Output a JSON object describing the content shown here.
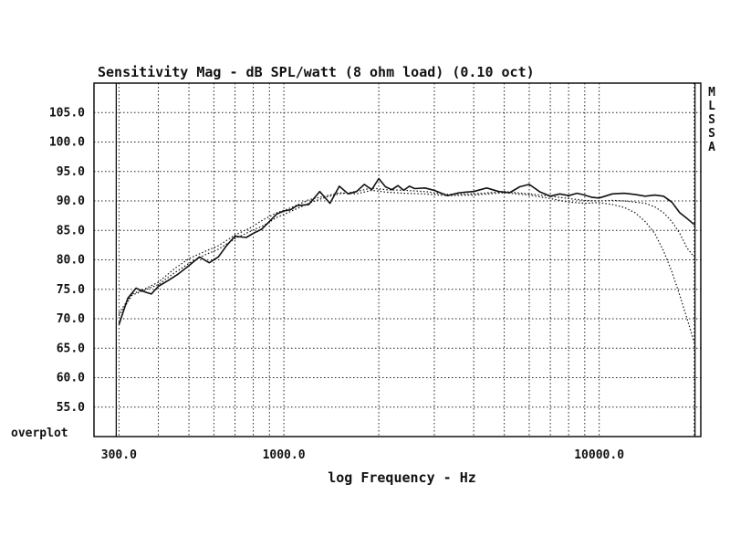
{
  "chart_data": {
    "type": "line",
    "title": "Sensitivity Mag - dB SPL/watt (8 ohm load) (0.10 oct)",
    "xlabel": "log Frequency - Hz",
    "ylabel": "",
    "corner_label": "overplot",
    "side_label": "MLSSA",
    "x_scale": "log",
    "xlim": [
      250,
      21000
    ],
    "ylim": [
      50,
      110
    ],
    "grid": true,
    "x_ticks": [
      300,
      1000,
      10000
    ],
    "x_tick_labels": [
      "300.0",
      "1000.0",
      "10000.0"
    ],
    "y_ticks": [
      55,
      60,
      65,
      70,
      75,
      80,
      85,
      90,
      95,
      100,
      105
    ],
    "y_tick_labels": [
      "55.0",
      "60.0",
      "65.0",
      "70.0",
      "75.0",
      "80.0",
      "85.0",
      "90.0",
      "95.0",
      "100.0",
      "105.0"
    ],
    "series": [
      {
        "style": "solid",
        "x": [
          300,
          320,
          340,
          360,
          380,
          400,
          430,
          460,
          500,
          540,
          580,
          620,
          660,
          700,
          760,
          800,
          850,
          900,
          950,
          1000,
          1050,
          1100,
          1200,
          1300,
          1400,
          1500,
          1600,
          1700,
          1800,
          1900,
          2000,
          2100,
          2200,
          2300,
          2400,
          2500,
          2600,
          2800,
          3000,
          3300,
          3600,
          4000,
          4400,
          4800,
          5200,
          5600,
          6000,
          6500,
          7000,
          7500,
          8000,
          8500,
          9000,
          9500,
          10000,
          11000,
          12000,
          13000,
          14000,
          15000,
          16000,
          17000,
          18000,
          19000,
          20000
        ],
        "y": [
          69,
          73.5,
          75.2,
          74.6,
          74.2,
          75.5,
          76.5,
          77.5,
          79,
          80.5,
          79.5,
          80.5,
          82.5,
          84,
          83.8,
          84.5,
          85.2,
          86.5,
          87.8,
          88.3,
          88.5,
          89.2,
          89.4,
          91.6,
          89.6,
          92.5,
          91.2,
          91.6,
          92.8,
          91.9,
          93.8,
          92.4,
          91.9,
          92.6,
          91.8,
          92.5,
          92.1,
          92.2,
          91.8,
          90.9,
          91.4,
          91.6,
          92.2,
          91.6,
          91.4,
          92.4,
          92.8,
          91.5,
          90.8,
          91.2,
          90.9,
          91.3,
          91,
          90.6,
          90.5,
          91.2,
          91.3,
          91.1,
          90.8,
          91,
          90.8,
          89.8,
          88,
          87,
          86
        ]
      },
      {
        "style": "dotted",
        "x": [
          300,
          330,
          360,
          400,
          450,
          500,
          560,
          620,
          700,
          780,
          860,
          950,
          1050,
          1200,
          1350,
          1500,
          1700,
          1900,
          2100,
          2400,
          2800,
          3300,
          4000,
          5000,
          6000,
          7000,
          8000,
          9000,
          10000,
          11000,
          12000,
          13000,
          14000,
          15000,
          16000,
          17000,
          18000,
          19000,
          20000
        ],
        "y": [
          70.5,
          74,
          74.8,
          75.8,
          77.8,
          79.4,
          80.8,
          81.8,
          83.6,
          84.8,
          85.8,
          87.2,
          88.2,
          89.6,
          90.6,
          91.2,
          91.6,
          92.2,
          91.9,
          91.8,
          91.6,
          91.1,
          91.2,
          91.6,
          91.2,
          90.8,
          90.4,
          90.1,
          90,
          90.1,
          90,
          89.8,
          89.6,
          89,
          88,
          86.5,
          84.5,
          82,
          80.5
        ]
      },
      {
        "style": "dotted",
        "x": [
          300,
          330,
          360,
          400,
          450,
          500,
          560,
          620,
          700,
          780,
          860,
          950,
          1050,
          1200,
          1350,
          1500,
          1700,
          1900,
          2100,
          2400,
          2800,
          3300,
          4000,
          5000,
          6000,
          7000,
          8000,
          9000,
          10000,
          11000,
          12000,
          13000,
          14000,
          15000,
          16000,
          17000,
          18000,
          19000,
          20000
        ],
        "y": [
          71,
          74.2,
          75,
          76.2,
          78.5,
          80.2,
          81.4,
          82.4,
          84.2,
          85.4,
          86.8,
          88,
          88.8,
          90.2,
          90.8,
          91.4,
          91.2,
          91.8,
          91.5,
          91.3,
          91.2,
          90.9,
          91,
          91.4,
          91,
          90.4,
          89.8,
          89.6,
          89.7,
          89.4,
          88.9,
          88,
          86.5,
          84.5,
          81.5,
          78,
          74,
          70,
          66
        ]
      }
    ]
  }
}
